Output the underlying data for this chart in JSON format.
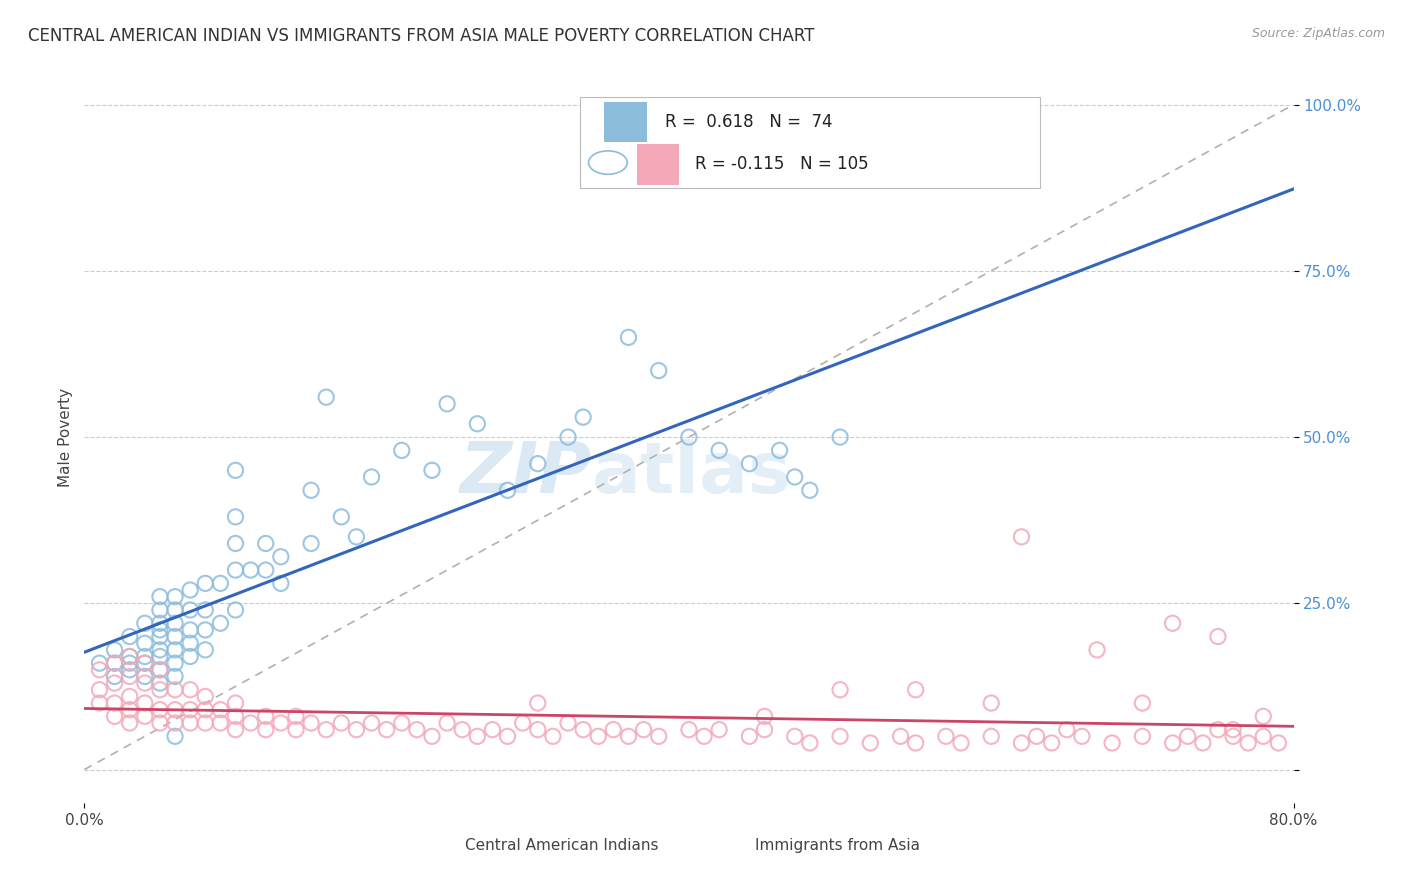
{
  "title": "CENTRAL AMERICAN INDIAN VS IMMIGRANTS FROM ASIA MALE POVERTY CORRELATION CHART",
  "source": "Source: ZipAtlas.com",
  "ylabel": "Male Poverty",
  "xlim": [
    0.0,
    0.8
  ],
  "ylim": [
    -0.05,
    1.05
  ],
  "xtick_labels": [
    "0.0%",
    "80.0%"
  ],
  "xtick_pos": [
    0.0,
    0.8
  ],
  "ytick_positions": [
    0.0,
    0.25,
    0.5,
    0.75,
    1.0
  ],
  "ytick_labels": [
    "",
    "25.0%",
    "50.0%",
    "75.0%",
    "100.0%"
  ],
  "legend1_label": "Central American Indians",
  "legend2_label": "Immigrants from Asia",
  "R1": 0.618,
  "N1": 74,
  "R2": -0.115,
  "N2": 105,
  "blue_color": "#8bbcdc",
  "pink_color": "#f4a8b8",
  "blue_line_color": "#3366bb",
  "pink_line_color": "#cc4466",
  "dashed_line_color": "#b0b0b0",
  "watermark_color": "#cde0f0",
  "blue_scatter_x": [
    0.01,
    0.02,
    0.02,
    0.02,
    0.03,
    0.03,
    0.03,
    0.03,
    0.04,
    0.04,
    0.04,
    0.04,
    0.04,
    0.05,
    0.05,
    0.05,
    0.05,
    0.05,
    0.05,
    0.05,
    0.05,
    0.05,
    0.06,
    0.06,
    0.06,
    0.06,
    0.06,
    0.06,
    0.06,
    0.07,
    0.07,
    0.07,
    0.07,
    0.07,
    0.08,
    0.08,
    0.08,
    0.08,
    0.09,
    0.09,
    0.1,
    0.1,
    0.1,
    0.1,
    0.1,
    0.11,
    0.12,
    0.12,
    0.13,
    0.13,
    0.15,
    0.15,
    0.16,
    0.17,
    0.18,
    0.19,
    0.21,
    0.23,
    0.24,
    0.26,
    0.28,
    0.3,
    0.32,
    0.33,
    0.36,
    0.38,
    0.4,
    0.42,
    0.44,
    0.46,
    0.47,
    0.48,
    0.5,
    0.06
  ],
  "blue_scatter_y": [
    0.16,
    0.14,
    0.16,
    0.18,
    0.15,
    0.16,
    0.17,
    0.2,
    0.14,
    0.16,
    0.17,
    0.19,
    0.22,
    0.13,
    0.15,
    0.17,
    0.18,
    0.2,
    0.21,
    0.22,
    0.24,
    0.26,
    0.14,
    0.16,
    0.18,
    0.2,
    0.22,
    0.24,
    0.26,
    0.17,
    0.19,
    0.21,
    0.24,
    0.27,
    0.18,
    0.21,
    0.24,
    0.28,
    0.22,
    0.28,
    0.24,
    0.3,
    0.34,
    0.38,
    0.45,
    0.3,
    0.3,
    0.34,
    0.28,
    0.32,
    0.34,
    0.42,
    0.56,
    0.38,
    0.35,
    0.44,
    0.48,
    0.45,
    0.55,
    0.52,
    0.42,
    0.46,
    0.5,
    0.53,
    0.65,
    0.6,
    0.5,
    0.48,
    0.46,
    0.48,
    0.44,
    0.42,
    0.5,
    0.05
  ],
  "pink_scatter_x": [
    0.01,
    0.01,
    0.01,
    0.02,
    0.02,
    0.02,
    0.02,
    0.03,
    0.03,
    0.03,
    0.03,
    0.03,
    0.04,
    0.04,
    0.04,
    0.04,
    0.05,
    0.05,
    0.05,
    0.05,
    0.06,
    0.06,
    0.06,
    0.07,
    0.07,
    0.07,
    0.08,
    0.08,
    0.08,
    0.09,
    0.09,
    0.1,
    0.1,
    0.1,
    0.11,
    0.12,
    0.12,
    0.13,
    0.14,
    0.14,
    0.15,
    0.16,
    0.17,
    0.18,
    0.19,
    0.2,
    0.21,
    0.22,
    0.23,
    0.24,
    0.25,
    0.26,
    0.27,
    0.28,
    0.29,
    0.3,
    0.31,
    0.32,
    0.33,
    0.34,
    0.35,
    0.36,
    0.37,
    0.38,
    0.4,
    0.41,
    0.42,
    0.44,
    0.45,
    0.47,
    0.48,
    0.5,
    0.52,
    0.54,
    0.55,
    0.57,
    0.58,
    0.6,
    0.62,
    0.63,
    0.64,
    0.65,
    0.66,
    0.68,
    0.7,
    0.72,
    0.73,
    0.74,
    0.75,
    0.76,
    0.77,
    0.78,
    0.79,
    0.55,
    0.6,
    0.67,
    0.72,
    0.75,
    0.78,
    0.5,
    0.45,
    0.62,
    0.3,
    0.7,
    0.76
  ],
  "pink_scatter_y": [
    0.1,
    0.12,
    0.15,
    0.08,
    0.1,
    0.13,
    0.16,
    0.07,
    0.09,
    0.11,
    0.14,
    0.17,
    0.08,
    0.1,
    0.13,
    0.16,
    0.07,
    0.09,
    0.12,
    0.15,
    0.07,
    0.09,
    0.12,
    0.07,
    0.09,
    0.12,
    0.07,
    0.09,
    0.11,
    0.07,
    0.09,
    0.06,
    0.08,
    0.1,
    0.07,
    0.06,
    0.08,
    0.07,
    0.06,
    0.08,
    0.07,
    0.06,
    0.07,
    0.06,
    0.07,
    0.06,
    0.07,
    0.06,
    0.05,
    0.07,
    0.06,
    0.05,
    0.06,
    0.05,
    0.07,
    0.06,
    0.05,
    0.07,
    0.06,
    0.05,
    0.06,
    0.05,
    0.06,
    0.05,
    0.06,
    0.05,
    0.06,
    0.05,
    0.06,
    0.05,
    0.04,
    0.05,
    0.04,
    0.05,
    0.04,
    0.05,
    0.04,
    0.05,
    0.04,
    0.05,
    0.04,
    0.06,
    0.05,
    0.04,
    0.05,
    0.04,
    0.05,
    0.04,
    0.06,
    0.05,
    0.04,
    0.05,
    0.04,
    0.12,
    0.1,
    0.18,
    0.22,
    0.2,
    0.08,
    0.12,
    0.08,
    0.35,
    0.1,
    0.1,
    0.06
  ]
}
